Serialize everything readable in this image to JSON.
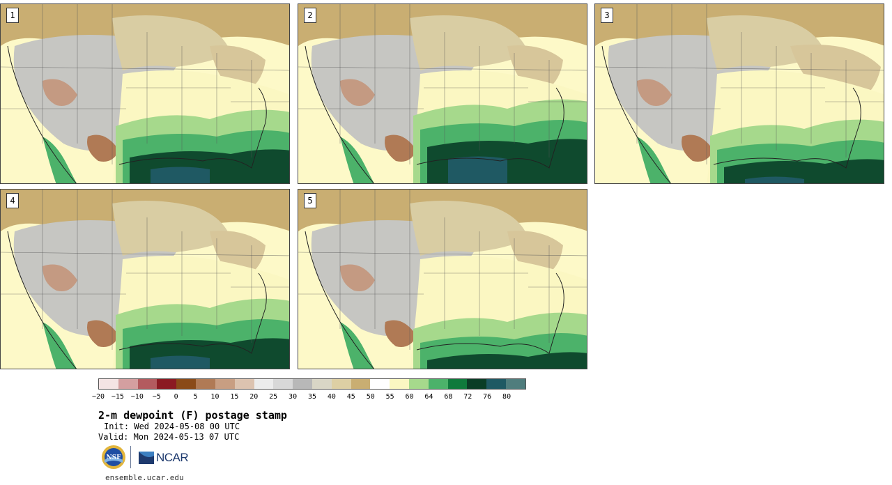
{
  "stamps": [
    {
      "label": "1"
    },
    {
      "label": "2"
    },
    {
      "label": "3"
    },
    {
      "label": "4"
    },
    {
      "label": "5"
    }
  ],
  "colorbar": {
    "ticks": [
      "−20",
      "−15",
      "−10",
      "−5",
      "0",
      "5",
      "10",
      "15",
      "20",
      "25",
      "30",
      "35",
      "40",
      "45",
      "50",
      "55",
      "60",
      "64",
      "68",
      "72",
      "76",
      "80"
    ],
    "colors": [
      "#f4e4e4",
      "#d49fa0",
      "#b35b5f",
      "#8b1a22",
      "#8a4a18",
      "#b07a55",
      "#c89e82",
      "#dcc3b0",
      "#ececec",
      "#d8d8d8",
      "#b8b8b8",
      "#d9d6c6",
      "#ddcfa4",
      "#c9ae72",
      "#ffffff",
      "#fbf7c2",
      "#a6d98c",
      "#4cb26a",
      "#0f7a3c",
      "#0a3d26",
      "#1f5963",
      "#4f7d7d"
    ]
  },
  "title": "2-m dewpoint (F) postage stamp",
  "init": "Init: Wed 2024-05-08 00 UTC",
  "valid": "Valid: Mon 2024-05-13 07 UTC",
  "logos": {
    "nsf": "NSF",
    "ncar": "NCAR"
  },
  "url": "ensemble.ucar.edu"
}
